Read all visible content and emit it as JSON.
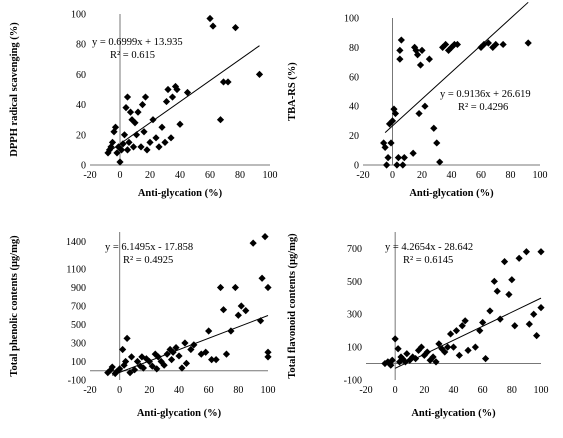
{
  "chart_data": [
    {
      "type": "scatter",
      "xlabel": "Anti-glycation (%)",
      "ylabel": "DPPH radical scavenging (%)",
      "xlim": [
        -20,
        100
      ],
      "ylim": [
        0,
        100
      ],
      "xticks": [
        "-20",
        "0",
        "20",
        "40",
        "60",
        "80",
        "100"
      ],
      "yticks": [
        "0",
        "20",
        "40",
        "60",
        "80",
        "100"
      ],
      "annotation": [
        "y = 0.6999x + 13.935",
        "R² = 0.615"
      ],
      "trendline": {
        "slope": 0.6999,
        "intercept": 13.935,
        "x_range": [
          -7,
          93
        ]
      },
      "x": [
        -8,
        -7,
        -6,
        -5,
        -4,
        -3,
        -2,
        -1,
        0,
        1,
        2,
        3,
        4,
        5,
        5,
        6,
        7,
        8,
        9,
        10,
        11,
        12,
        14,
        15,
        16,
        17,
        18,
        20,
        22,
        24,
        26,
        28,
        30,
        31,
        32,
        34,
        35,
        37,
        38,
        40,
        45,
        60,
        62,
        67,
        69,
        72,
        77,
        93
      ],
      "y": [
        8,
        10,
        12,
        15,
        22,
        25,
        8,
        12,
        2,
        10,
        14,
        20,
        38,
        45,
        10,
        15,
        35,
        30,
        12,
        28,
        20,
        35,
        12,
        40,
        22,
        45,
        10,
        15,
        30,
        18,
        12,
        25,
        15,
        42,
        50,
        18,
        45,
        52,
        50,
        27,
        48,
        97,
        92,
        30,
        55,
        55,
        91,
        60
      ]
    },
    {
      "type": "scatter",
      "xlabel": "Anti-glycation (%)",
      "ylabel": "TBA-RS (%)",
      "xlim": [
        -20,
        100
      ],
      "ylim": [
        0,
        100
      ],
      "xticks": [
        "-20",
        "0",
        "20",
        "40",
        "60",
        "80",
        "100"
      ],
      "yticks": [
        "0",
        "20",
        "40",
        "60",
        "80",
        "100"
      ],
      "annotation": [
        "y = 0.9136x + 26.619",
        "R² = 0.4296"
      ],
      "trendline": {
        "slope": 0.9136,
        "intercept": 26.619,
        "x_range": [
          -5,
          92
        ]
      },
      "x": [
        -6,
        -5,
        -4,
        -3,
        -2,
        -1,
        0,
        1,
        2,
        3,
        4,
        5,
        5,
        6,
        7,
        8,
        14,
        15,
        16,
        17,
        18,
        19,
        20,
        22,
        25,
        28,
        30,
        32,
        34,
        36,
        38,
        40,
        42,
        44,
        60,
        62,
        65,
        68,
        70,
        75,
        92
      ],
      "y": [
        15,
        12,
        0,
        5,
        28,
        15,
        30,
        38,
        35,
        0,
        5,
        78,
        72,
        85,
        0,
        5,
        8,
        80,
        78,
        75,
        35,
        68,
        78,
        40,
        72,
        25,
        15,
        2,
        80,
        82,
        78,
        80,
        82,
        82,
        80,
        82,
        83,
        80,
        82,
        82,
        83
      ]
    },
    {
      "type": "scatter",
      "xlabel": "Anti-glycation (%)",
      "ylabel": "Total phenolic contents (μg/mg)",
      "xlim": [
        -20,
        100
      ],
      "ylim": [
        -100,
        1500
      ],
      "xticks": [
        "-20",
        "0",
        "20",
        "40",
        "60",
        "80",
        "100"
      ],
      "yticks": [
        "-100",
        "100",
        "300",
        "500",
        "700",
        "900",
        "1100",
        "1400"
      ],
      "annotation": [
        "y = 6.1495x - 17.858",
        "R² = 0.4925"
      ],
      "trendline": {
        "slope": 6.1495,
        "intercept": -17.858,
        "x_range": [
          -5,
          100
        ]
      },
      "x": [
        -8,
        -6,
        -5,
        -3,
        -2,
        0,
        2,
        3,
        4,
        5,
        7,
        8,
        10,
        12,
        14,
        15,
        16,
        18,
        20,
        22,
        24,
        25,
        26,
        28,
        30,
        32,
        34,
        35,
        36,
        38,
        40,
        42,
        44,
        45,
        48,
        50,
        55,
        58,
        60,
        62,
        65,
        68,
        70,
        72,
        75,
        78,
        80,
        82,
        85,
        90,
        95,
        96,
        98,
        100,
        100,
        100
      ],
      "y": [
        -20,
        10,
        40,
        -30,
        -10,
        20,
        230,
        60,
        100,
        350,
        -20,
        150,
        10,
        100,
        50,
        150,
        30,
        130,
        100,
        50,
        180,
        20,
        150,
        100,
        60,
        180,
        230,
        120,
        200,
        250,
        160,
        30,
        300,
        80,
        230,
        280,
        180,
        200,
        430,
        120,
        120,
        900,
        660,
        180,
        430,
        900,
        600,
        700,
        650,
        1380,
        540,
        1000,
        1450,
        200,
        150,
        900
      ]
    },
    {
      "type": "scatter",
      "xlabel": "Anti-glycation (%)",
      "ylabel": "Total flavonoid contents (μg/mg)",
      "xlim": [
        -20,
        100
      ],
      "ylim": [
        -100,
        800
      ],
      "xticks": [
        "-20",
        "0",
        "20",
        "40",
        "60",
        "80",
        "100"
      ],
      "yticks": [
        "-100",
        "100",
        "300",
        "500",
        "700"
      ],
      "annotation": [
        "y = 4.2654x - 28.642",
        "R² = 0.6145"
      ],
      "trendline": {
        "slope": 4.2654,
        "intercept": -28.642,
        "x_range": [
          0,
          100
        ]
      },
      "x": [
        -7,
        -5,
        -3,
        -2,
        0,
        2,
        3,
        4,
        5,
        7,
        8,
        10,
        12,
        14,
        16,
        18,
        20,
        22,
        24,
        26,
        28,
        30,
        32,
        34,
        36,
        38,
        40,
        42,
        44,
        46,
        48,
        50,
        55,
        58,
        60,
        62,
        65,
        68,
        70,
        72,
        75,
        78,
        80,
        82,
        85,
        90,
        92,
        95,
        97,
        100,
        100
      ],
      "y": [
        0,
        10,
        -10,
        20,
        150,
        90,
        10,
        40,
        30,
        10,
        60,
        20,
        40,
        30,
        80,
        100,
        50,
        70,
        20,
        40,
        10,
        120,
        90,
        70,
        100,
        180,
        100,
        200,
        50,
        230,
        260,
        80,
        100,
        200,
        250,
        30,
        320,
        500,
        440,
        270,
        620,
        420,
        510,
        230,
        640,
        680,
        240,
        300,
        170,
        680,
        340
      ]
    }
  ]
}
